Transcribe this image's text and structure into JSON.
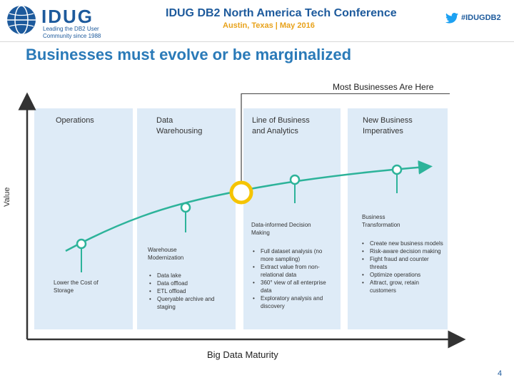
{
  "header": {
    "logo_text": "IDUG",
    "logo_tagline": "Leading the DB2 User Community since 1988",
    "conference_title": "IDUG DB2 North America Tech Conference",
    "conference_subtitle": "Austin, Texas | May 2016",
    "hashtag": "#IDUGDB2"
  },
  "slide": {
    "title": "Businesses must evolve or be marginalized",
    "here_label": "Most Businesses Are Here",
    "y_axis_label": "Value",
    "x_axis_label": "Big Data Maturity",
    "page_number": "4"
  },
  "stages": [
    {
      "label": "Operations",
      "milestone": "Lower the Cost of Storage",
      "bullets": []
    },
    {
      "label": "Data Warehousing",
      "milestone": "Warehouse Modernization",
      "bullets": [
        "Data lake",
        "Data offload",
        "ETL offload",
        "Queryable archive and staging"
      ]
    },
    {
      "label": "Line of Business and Analytics",
      "milestone": "Data-informed Decision Making",
      "bullets": [
        "Full dataset analysis (no more sampling)",
        "Extract value from non-relational data",
        "360° view of all enterprise data",
        "Exploratory analysis and discovery"
      ]
    },
    {
      "label": "New Business Imperatives",
      "milestone": "Business Transformation",
      "bullets": [
        "Create new business models",
        "Risk-aware decision making",
        "Fight fraud and counter threats",
        "Optimize operations",
        "Attract, grow, retain customers"
      ]
    }
  ],
  "colors": {
    "accent_blue": "#2a7ab8",
    "brand_blue": "#1d5a9c",
    "curve_green": "#2db39a",
    "highlight_yellow": "#f5c400",
    "box_fill": "#deebf7"
  }
}
